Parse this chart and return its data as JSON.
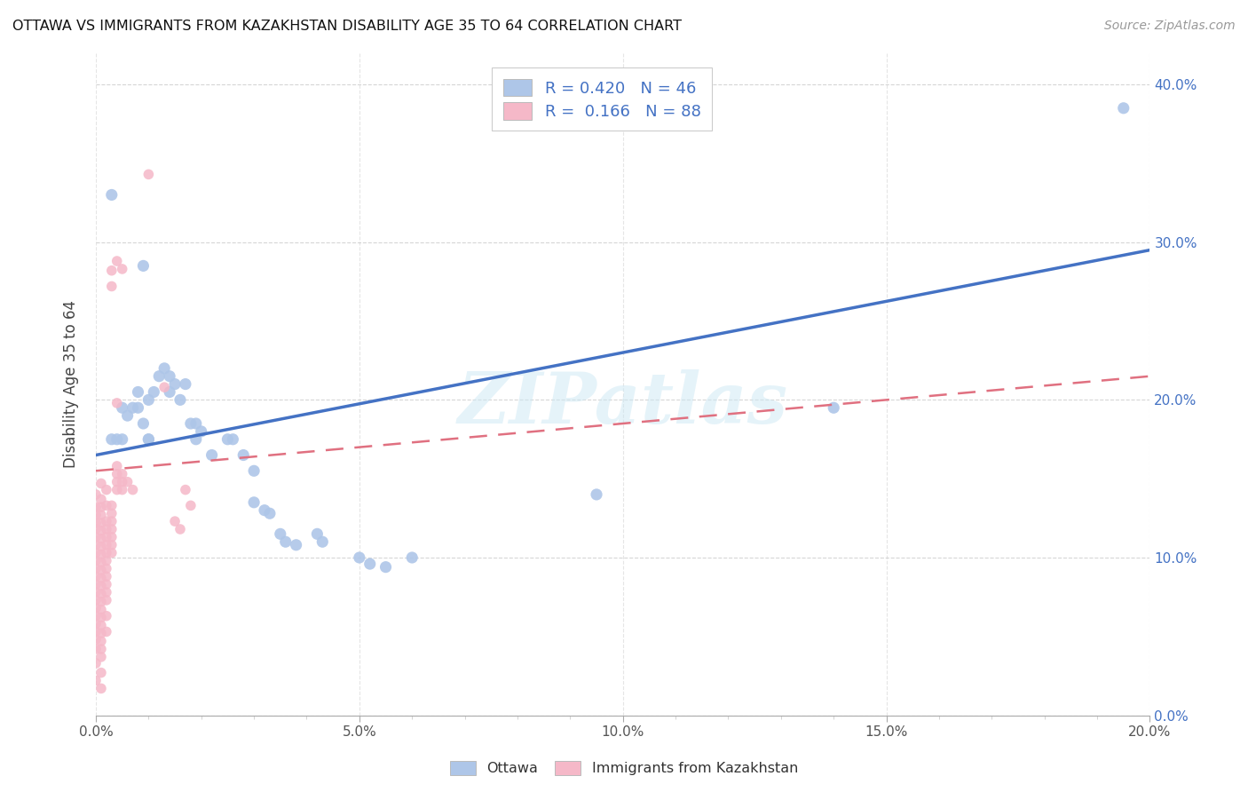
{
  "title": "OTTAWA VS IMMIGRANTS FROM KAZAKHSTAN DISABILITY AGE 35 TO 64 CORRELATION CHART",
  "source": "Source: ZipAtlas.com",
  "ylabel": "Disability Age 35 to 64",
  "xlim": [
    0.0,
    0.2
  ],
  "ylim": [
    0.0,
    0.42
  ],
  "xticks": [
    0.0,
    0.05,
    0.1,
    0.15,
    0.2
  ],
  "yticks": [
    0.0,
    0.1,
    0.2,
    0.3,
    0.4
  ],
  "ottawa_color": "#aec6e8",
  "kazakhstan_color": "#f5b8c8",
  "ottawa_line_color": "#4472c4",
  "kazakhstan_line_color": "#e07080",
  "R_ottawa": 0.42,
  "N_ottawa": 46,
  "R_kazakhstan": 0.166,
  "N_kazakhstan": 88,
  "watermark": "ZIPatlas",
  "ottawa_line_x0": 0.0,
  "ottawa_line_y0": 0.165,
  "ottawa_line_x1": 0.2,
  "ottawa_line_y1": 0.295,
  "kaz_line_x0": 0.0,
  "kaz_line_y0": 0.155,
  "kaz_line_x1": 0.2,
  "kaz_line_y1": 0.215,
  "ottawa_scatter": [
    [
      0.003,
      0.33
    ],
    [
      0.009,
      0.285
    ],
    [
      0.008,
      0.195
    ],
    [
      0.01,
      0.2
    ],
    [
      0.011,
      0.205
    ],
    [
      0.012,
      0.215
    ],
    [
      0.007,
      0.195
    ],
    [
      0.006,
      0.19
    ],
    [
      0.005,
      0.195
    ],
    [
      0.008,
      0.205
    ],
    [
      0.009,
      0.185
    ],
    [
      0.01,
      0.175
    ],
    [
      0.01,
      0.175
    ],
    [
      0.014,
      0.215
    ],
    [
      0.015,
      0.21
    ],
    [
      0.016,
      0.2
    ],
    [
      0.017,
      0.21
    ],
    [
      0.014,
      0.205
    ],
    [
      0.013,
      0.22
    ],
    [
      0.019,
      0.185
    ],
    [
      0.02,
      0.18
    ],
    [
      0.025,
      0.175
    ],
    [
      0.026,
      0.175
    ],
    [
      0.019,
      0.175
    ],
    [
      0.018,
      0.185
    ],
    [
      0.003,
      0.175
    ],
    [
      0.004,
      0.175
    ],
    [
      0.005,
      0.175
    ],
    [
      0.03,
      0.155
    ],
    [
      0.028,
      0.165
    ],
    [
      0.022,
      0.165
    ],
    [
      0.03,
      0.135
    ],
    [
      0.032,
      0.13
    ],
    [
      0.033,
      0.128
    ],
    [
      0.035,
      0.115
    ],
    [
      0.036,
      0.11
    ],
    [
      0.038,
      0.108
    ],
    [
      0.042,
      0.115
    ],
    [
      0.043,
      0.11
    ],
    [
      0.05,
      0.1
    ],
    [
      0.052,
      0.096
    ],
    [
      0.055,
      0.094
    ],
    [
      0.06,
      0.1
    ],
    [
      0.095,
      0.14
    ],
    [
      0.14,
      0.195
    ],
    [
      0.195,
      0.385
    ]
  ],
  "kazakhstan_scatter": [
    [
      0.0,
      0.14
    ],
    [
      0.0,
      0.132
    ],
    [
      0.0,
      0.127
    ],
    [
      0.0,
      0.122
    ],
    [
      0.0,
      0.118
    ],
    [
      0.0,
      0.113
    ],
    [
      0.0,
      0.108
    ],
    [
      0.0,
      0.103
    ],
    [
      0.0,
      0.098
    ],
    [
      0.0,
      0.093
    ],
    [
      0.0,
      0.088
    ],
    [
      0.0,
      0.083
    ],
    [
      0.0,
      0.078
    ],
    [
      0.0,
      0.073
    ],
    [
      0.0,
      0.068
    ],
    [
      0.0,
      0.063
    ],
    [
      0.0,
      0.058
    ],
    [
      0.0,
      0.053
    ],
    [
      0.0,
      0.048
    ],
    [
      0.0,
      0.042
    ],
    [
      0.0,
      0.033
    ],
    [
      0.0,
      0.022
    ],
    [
      0.001,
      0.147
    ],
    [
      0.001,
      0.137
    ],
    [
      0.001,
      0.132
    ],
    [
      0.001,
      0.127
    ],
    [
      0.001,
      0.122
    ],
    [
      0.001,
      0.117
    ],
    [
      0.001,
      0.112
    ],
    [
      0.001,
      0.107
    ],
    [
      0.001,
      0.102
    ],
    [
      0.001,
      0.097
    ],
    [
      0.001,
      0.092
    ],
    [
      0.001,
      0.087
    ],
    [
      0.001,
      0.082
    ],
    [
      0.001,
      0.077
    ],
    [
      0.001,
      0.072
    ],
    [
      0.001,
      0.067
    ],
    [
      0.001,
      0.062
    ],
    [
      0.001,
      0.057
    ],
    [
      0.001,
      0.052
    ],
    [
      0.001,
      0.047
    ],
    [
      0.001,
      0.042
    ],
    [
      0.001,
      0.037
    ],
    [
      0.001,
      0.027
    ],
    [
      0.001,
      0.017
    ],
    [
      0.002,
      0.143
    ],
    [
      0.002,
      0.133
    ],
    [
      0.002,
      0.123
    ],
    [
      0.002,
      0.118
    ],
    [
      0.002,
      0.113
    ],
    [
      0.002,
      0.108
    ],
    [
      0.002,
      0.103
    ],
    [
      0.002,
      0.098
    ],
    [
      0.002,
      0.093
    ],
    [
      0.002,
      0.088
    ],
    [
      0.002,
      0.083
    ],
    [
      0.002,
      0.078
    ],
    [
      0.002,
      0.073
    ],
    [
      0.002,
      0.063
    ],
    [
      0.002,
      0.053
    ],
    [
      0.003,
      0.282
    ],
    [
      0.003,
      0.272
    ],
    [
      0.003,
      0.133
    ],
    [
      0.003,
      0.128
    ],
    [
      0.003,
      0.123
    ],
    [
      0.003,
      0.118
    ],
    [
      0.003,
      0.113
    ],
    [
      0.003,
      0.108
    ],
    [
      0.003,
      0.103
    ],
    [
      0.004,
      0.288
    ],
    [
      0.004,
      0.158
    ],
    [
      0.004,
      0.153
    ],
    [
      0.004,
      0.148
    ],
    [
      0.004,
      0.143
    ],
    [
      0.004,
      0.198
    ],
    [
      0.005,
      0.283
    ],
    [
      0.005,
      0.153
    ],
    [
      0.005,
      0.148
    ],
    [
      0.005,
      0.143
    ],
    [
      0.006,
      0.148
    ],
    [
      0.007,
      0.143
    ],
    [
      0.01,
      0.343
    ],
    [
      0.013,
      0.208
    ],
    [
      0.015,
      0.123
    ],
    [
      0.016,
      0.118
    ],
    [
      0.017,
      0.143
    ],
    [
      0.018,
      0.133
    ]
  ]
}
